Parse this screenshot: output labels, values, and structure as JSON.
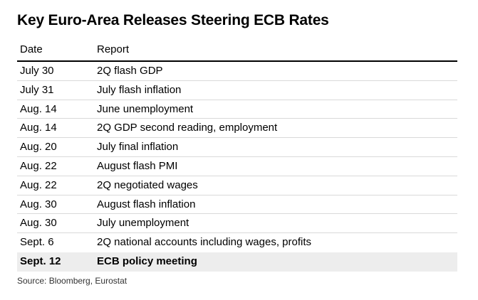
{
  "title": "Key Euro-Area Releases Steering ECB Rates",
  "table": {
    "headers": [
      "Date",
      "Report"
    ],
    "rows": [
      {
        "date": "July 30",
        "report": "2Q flash GDP"
      },
      {
        "date": "July 31",
        "report": "July flash inflation"
      },
      {
        "date": "Aug. 14",
        "report": "June unemployment"
      },
      {
        "date": "Aug. 14",
        "report": "2Q GDP second reading, employment"
      },
      {
        "date": "Aug. 20",
        "report": "July final inflation"
      },
      {
        "date": "Aug. 22",
        "report": "August flash PMI"
      },
      {
        "date": "Aug. 22",
        "report": "2Q negotiated wages"
      },
      {
        "date": "Aug. 30",
        "report": "August flash inflation"
      },
      {
        "date": "Aug. 30",
        "report": "July unemployment"
      },
      {
        "date": "Sept. 6",
        "report": "2Q national accounts including wages, profits"
      },
      {
        "date": "Sept. 12",
        "report": "ECB policy meeting"
      }
    ]
  },
  "source": "Source: Bloomberg, Eurostat",
  "colors": {
    "highlight_row": "#ededed",
    "rule": "#000000",
    "separator": "#d9d9d9"
  }
}
